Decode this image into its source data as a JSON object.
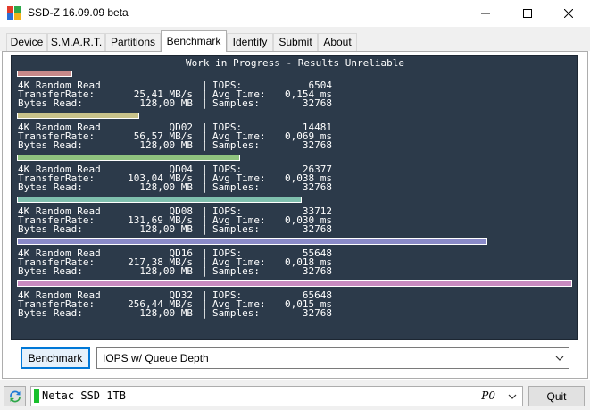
{
  "window": {
    "title": "SSD-Z 16.09.09 beta",
    "controls": {
      "minimize": "minimize-icon",
      "maximize": "maximize-icon",
      "close": "close-icon"
    }
  },
  "tabs": [
    {
      "label": "Device"
    },
    {
      "label": "S.M.A.R.T."
    },
    {
      "label": "Partitions"
    },
    {
      "label": "Benchmark",
      "active": true
    },
    {
      "label": "Identify"
    },
    {
      "label": "Submit"
    },
    {
      "label": "About"
    }
  ],
  "benchmark": {
    "header": "Work in Progress - Results Unreliable",
    "labels": {
      "transfer_rate": "TransferRate:",
      "bytes_read": "Bytes Read:",
      "iops": "IOPS:",
      "avg_time": "Avg Time:",
      "samples": "Samples:",
      "separator": "|"
    },
    "results": [
      {
        "test": "4K Random Read",
        "qd": "",
        "iops": "6504",
        "transfer_rate": "25,41 MB/s",
        "avg_time": "0,154 ms",
        "bytes_read": "128,00 MB",
        "samples": "32768",
        "bar_color": "#c88a8a"
      },
      {
        "test": "4K Random Read",
        "qd": "QD02",
        "iops": "14481",
        "transfer_rate": "56,57 MB/s",
        "avg_time": "0,069 ms",
        "bytes_read": "128,00 MB",
        "samples": "32768",
        "bar_color": "#c8c28a"
      },
      {
        "test": "4K Random Read",
        "qd": "QD04",
        "iops": "26377",
        "transfer_rate": "103,04 MB/s",
        "avg_time": "0,038 ms",
        "bytes_read": "128,00 MB",
        "samples": "32768",
        "bar_color": "#8fc27e"
      },
      {
        "test": "4K Random Read",
        "qd": "QD08",
        "iops": "33712",
        "transfer_rate": "131,69 MB/s",
        "avg_time": "0,030 ms",
        "bytes_read": "128,00 MB",
        "samples": "32768",
        "bar_color": "#7fbfae"
      },
      {
        "test": "4K Random Read",
        "qd": "QD16",
        "iops": "55648",
        "transfer_rate": "217,38 MB/s",
        "avg_time": "0,018 ms",
        "bytes_read": "128,00 MB",
        "samples": "32768",
        "bar_color": "#8a8ac8"
      },
      {
        "test": "4K Random Read",
        "qd": "QD32",
        "iops": "65648",
        "transfer_rate": "256,44 MB/s",
        "avg_time": "0,015 ms",
        "bytes_read": "128,00 MB",
        "samples": "32768",
        "bar_color": "#c88ac0"
      }
    ],
    "run_button": "Benchmark",
    "mode": {
      "selected": "IOPS w/ Queue Depth"
    }
  },
  "status": {
    "drive": "Netac SSD 1TB",
    "port": "P0",
    "quit_button": "Quit"
  }
}
